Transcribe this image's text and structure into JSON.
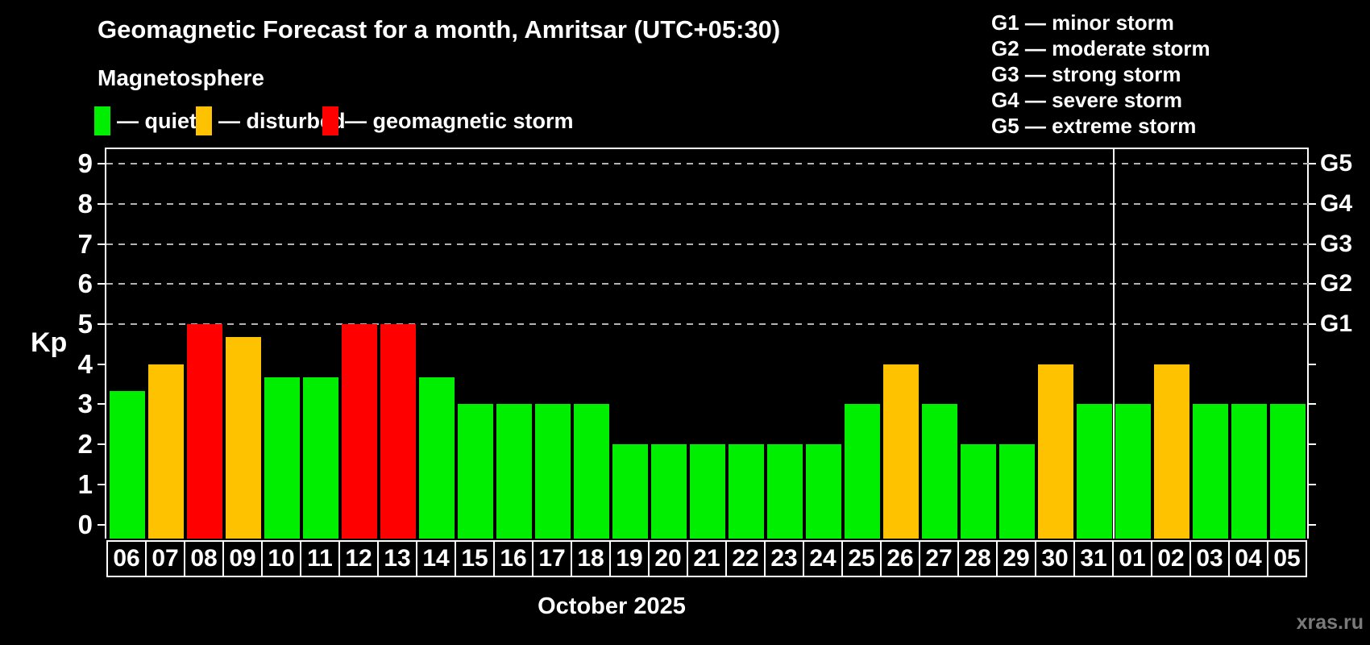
{
  "header": {
    "title": "Geomagnetic Forecast for a month, Amritsar (UTC+05:30)",
    "subtitle": "Magnetosphere"
  },
  "legend": {
    "items": [
      {
        "key": "quiet",
        "label": "— quiet",
        "color": "#00ee00"
      },
      {
        "key": "disturbed",
        "label": "— disturbed",
        "color": "#ffc200"
      },
      {
        "key": "storm",
        "label": "— geomagnetic storm",
        "color": "#ff0000"
      }
    ]
  },
  "g_legend": {
    "lines": [
      "G1 — minor storm",
      "G2 — moderate storm",
      "G3 — strong storm",
      "G4 — severe storm",
      "G5 — extreme storm"
    ]
  },
  "watermark": "xras.ru",
  "colors": {
    "background": "#000000",
    "quiet": "#00ee00",
    "disturbed": "#ffc200",
    "storm": "#ff0000",
    "grid": "#b3b3b3",
    "axis": "#ffffff",
    "watermark": "#7a7a7a"
  },
  "chart_data": {
    "type": "bar",
    "title": "Geomagnetic Forecast for a month, Amritsar (UTC+05:30)",
    "xlabel": "October 2025",
    "ylabel": "Kp",
    "ylim": [
      -0.35,
      9.4
    ],
    "yticks": [
      0,
      1,
      2,
      3,
      4,
      5,
      6,
      7,
      8,
      9
    ],
    "grid_levels": [
      5,
      6,
      7,
      8,
      9
    ],
    "grid_on": true,
    "right_axis_labels": [
      {
        "label": "G1",
        "kp": 5
      },
      {
        "label": "G2",
        "kp": 6
      },
      {
        "label": "G3",
        "kp": 7
      },
      {
        "label": "G4",
        "kp": 8
      },
      {
        "label": "G5",
        "kp": 9
      }
    ],
    "month_separator_after_index": 25,
    "bars": [
      {
        "day": "06",
        "kp": 3.33,
        "status": "quiet"
      },
      {
        "day": "07",
        "kp": 4.0,
        "status": "disturbed"
      },
      {
        "day": "08",
        "kp": 5.0,
        "status": "storm"
      },
      {
        "day": "09",
        "kp": 4.67,
        "status": "disturbed"
      },
      {
        "day": "10",
        "kp": 3.67,
        "status": "quiet"
      },
      {
        "day": "11",
        "kp": 3.67,
        "status": "quiet"
      },
      {
        "day": "12",
        "kp": 5.0,
        "status": "storm"
      },
      {
        "day": "13",
        "kp": 5.0,
        "status": "storm"
      },
      {
        "day": "14",
        "kp": 3.67,
        "status": "quiet"
      },
      {
        "day": "15",
        "kp": 3.0,
        "status": "quiet"
      },
      {
        "day": "16",
        "kp": 3.0,
        "status": "quiet"
      },
      {
        "day": "17",
        "kp": 3.0,
        "status": "quiet"
      },
      {
        "day": "18",
        "kp": 3.0,
        "status": "quiet"
      },
      {
        "day": "19",
        "kp": 2.0,
        "status": "quiet"
      },
      {
        "day": "20",
        "kp": 2.0,
        "status": "quiet"
      },
      {
        "day": "21",
        "kp": 2.0,
        "status": "quiet"
      },
      {
        "day": "22",
        "kp": 2.0,
        "status": "quiet"
      },
      {
        "day": "23",
        "kp": 2.0,
        "status": "quiet"
      },
      {
        "day": "24",
        "kp": 2.0,
        "status": "quiet"
      },
      {
        "day": "25",
        "kp": 3.0,
        "status": "quiet"
      },
      {
        "day": "26",
        "kp": 4.0,
        "status": "disturbed"
      },
      {
        "day": "27",
        "kp": 3.0,
        "status": "quiet"
      },
      {
        "day": "28",
        "kp": 2.0,
        "status": "quiet"
      },
      {
        "day": "29",
        "kp": 2.0,
        "status": "quiet"
      },
      {
        "day": "30",
        "kp": 4.0,
        "status": "disturbed"
      },
      {
        "day": "31",
        "kp": 3.0,
        "status": "quiet"
      },
      {
        "day": "01",
        "kp": 3.0,
        "status": "quiet"
      },
      {
        "day": "02",
        "kp": 4.0,
        "status": "disturbed"
      },
      {
        "day": "03",
        "kp": 3.0,
        "status": "quiet"
      },
      {
        "day": "04",
        "kp": 3.0,
        "status": "quiet"
      },
      {
        "day": "05",
        "kp": 3.0,
        "status": "quiet"
      }
    ]
  }
}
